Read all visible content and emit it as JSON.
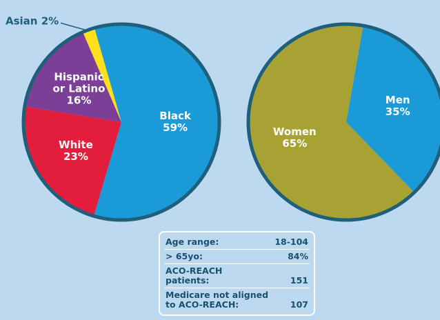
{
  "chart_data": [
    {
      "type": "pie",
      "categories": [
        "Black",
        "White",
        "Hispanic or Latino",
        "Asian"
      ],
      "values": [
        59,
        23,
        16,
        2
      ],
      "value_labels": [
        "59%",
        "23%",
        "16%",
        "2%"
      ],
      "colors": [
        "#1a9ad6",
        "#e31e3c",
        "#7b3f98",
        "#ffe01b"
      ]
    },
    {
      "type": "pie",
      "categories": [
        "Men",
        "Women"
      ],
      "values": [
        35,
        65
      ],
      "value_labels": [
        "35%",
        "65%"
      ],
      "colors": [
        "#1a9ad6",
        "#a8a235"
      ]
    }
  ],
  "table": {
    "rows": [
      [
        "Age range:",
        "18-104"
      ],
      [
        "> 65yo:",
        "84%"
      ],
      [
        "ACO-REACH patients:",
        "151"
      ],
      [
        "Medicare not aligned to ACO-REACH:",
        "107"
      ]
    ]
  }
}
